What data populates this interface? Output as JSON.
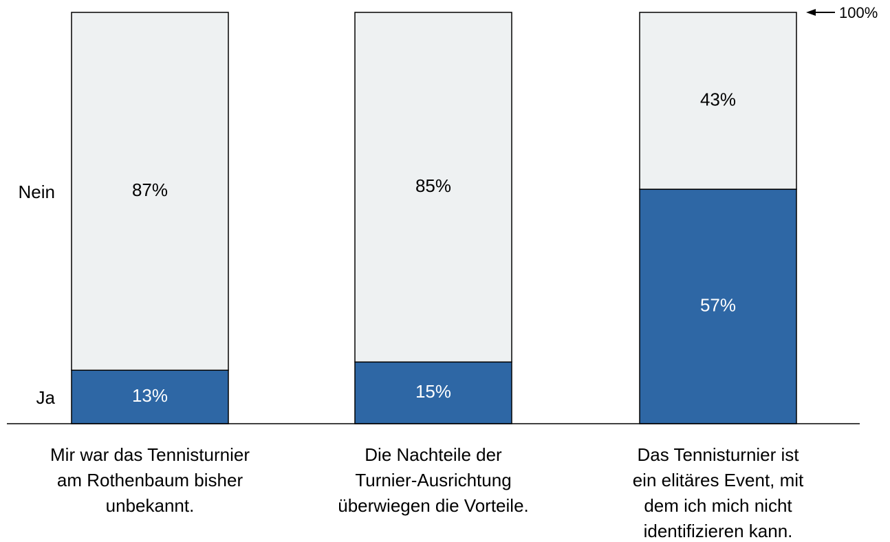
{
  "chart_data": {
    "type": "stacked_bar",
    "categories": [
      [
        "Mir war das Tennisturnier",
        "am Rothenbaum bisher",
        "unbekannt."
      ],
      [
        "Die Nachteile der",
        "Turnier-Ausrichtung",
        "überwiegen die Vorteile."
      ],
      [
        "Das Tennisturnier ist",
        "ein elitäres Event, mit",
        "dem ich mich nicht",
        "identifizieren kann."
      ]
    ],
    "series": [
      {
        "name": "Ja",
        "color": "#2e67a5",
        "label_color": "#ffffff",
        "values": [
          13,
          15,
          57
        ],
        "value_labels": [
          "13%",
          "15%",
          "57%"
        ]
      },
      {
        "name": "Nein",
        "color": "#eef1f2",
        "label_color": "#000000",
        "values": [
          87,
          85,
          43
        ],
        "value_labels": [
          "87%",
          "85%",
          "43%"
        ]
      }
    ],
    "ylim": [
      0,
      100
    ],
    "yticks": [
      {
        "value": 100,
        "label": "100%"
      }
    ]
  }
}
